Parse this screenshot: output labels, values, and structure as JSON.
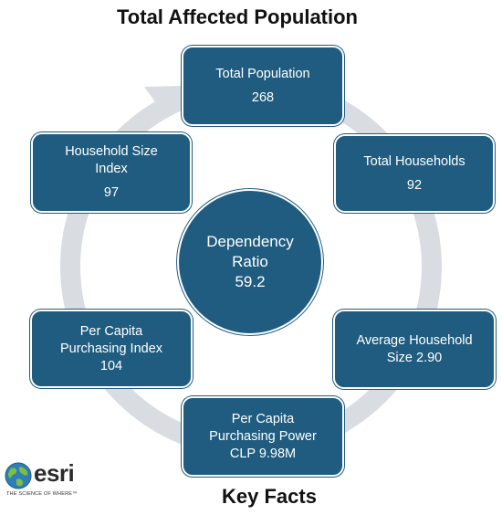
{
  "title": "Total Affected Population",
  "footer_title": "Key Facts",
  "center": {
    "label_line1": "Dependency",
    "label_line2": "Ratio",
    "value": "59.2"
  },
  "boxes": {
    "total_population": {
      "line1": "Total Population",
      "value": "268"
    },
    "total_households": {
      "line1": "Total Households",
      "value": "92"
    },
    "average_household_size": {
      "line1": "Average Household",
      "line2": "Size 2.90"
    },
    "per_capita_purchasing_power": {
      "line1": "Per Capita",
      "line2": "Purchasing Power",
      "line3": "CLP 9.98M"
    },
    "per_capita_purchasing_index": {
      "line1": "Per Capita",
      "line2": "Purchasing Index",
      "value": "104"
    },
    "household_size_index": {
      "line1": "Household Size",
      "line2": "Index",
      "value": "97"
    }
  },
  "logo": {
    "word": "esri",
    "tagline": "THE SCIENCE OF WHERE™"
  },
  "colors": {
    "box_fill": "#1f5c80",
    "ring": "#d9dde2",
    "text_on_box": "#ffffff"
  }
}
